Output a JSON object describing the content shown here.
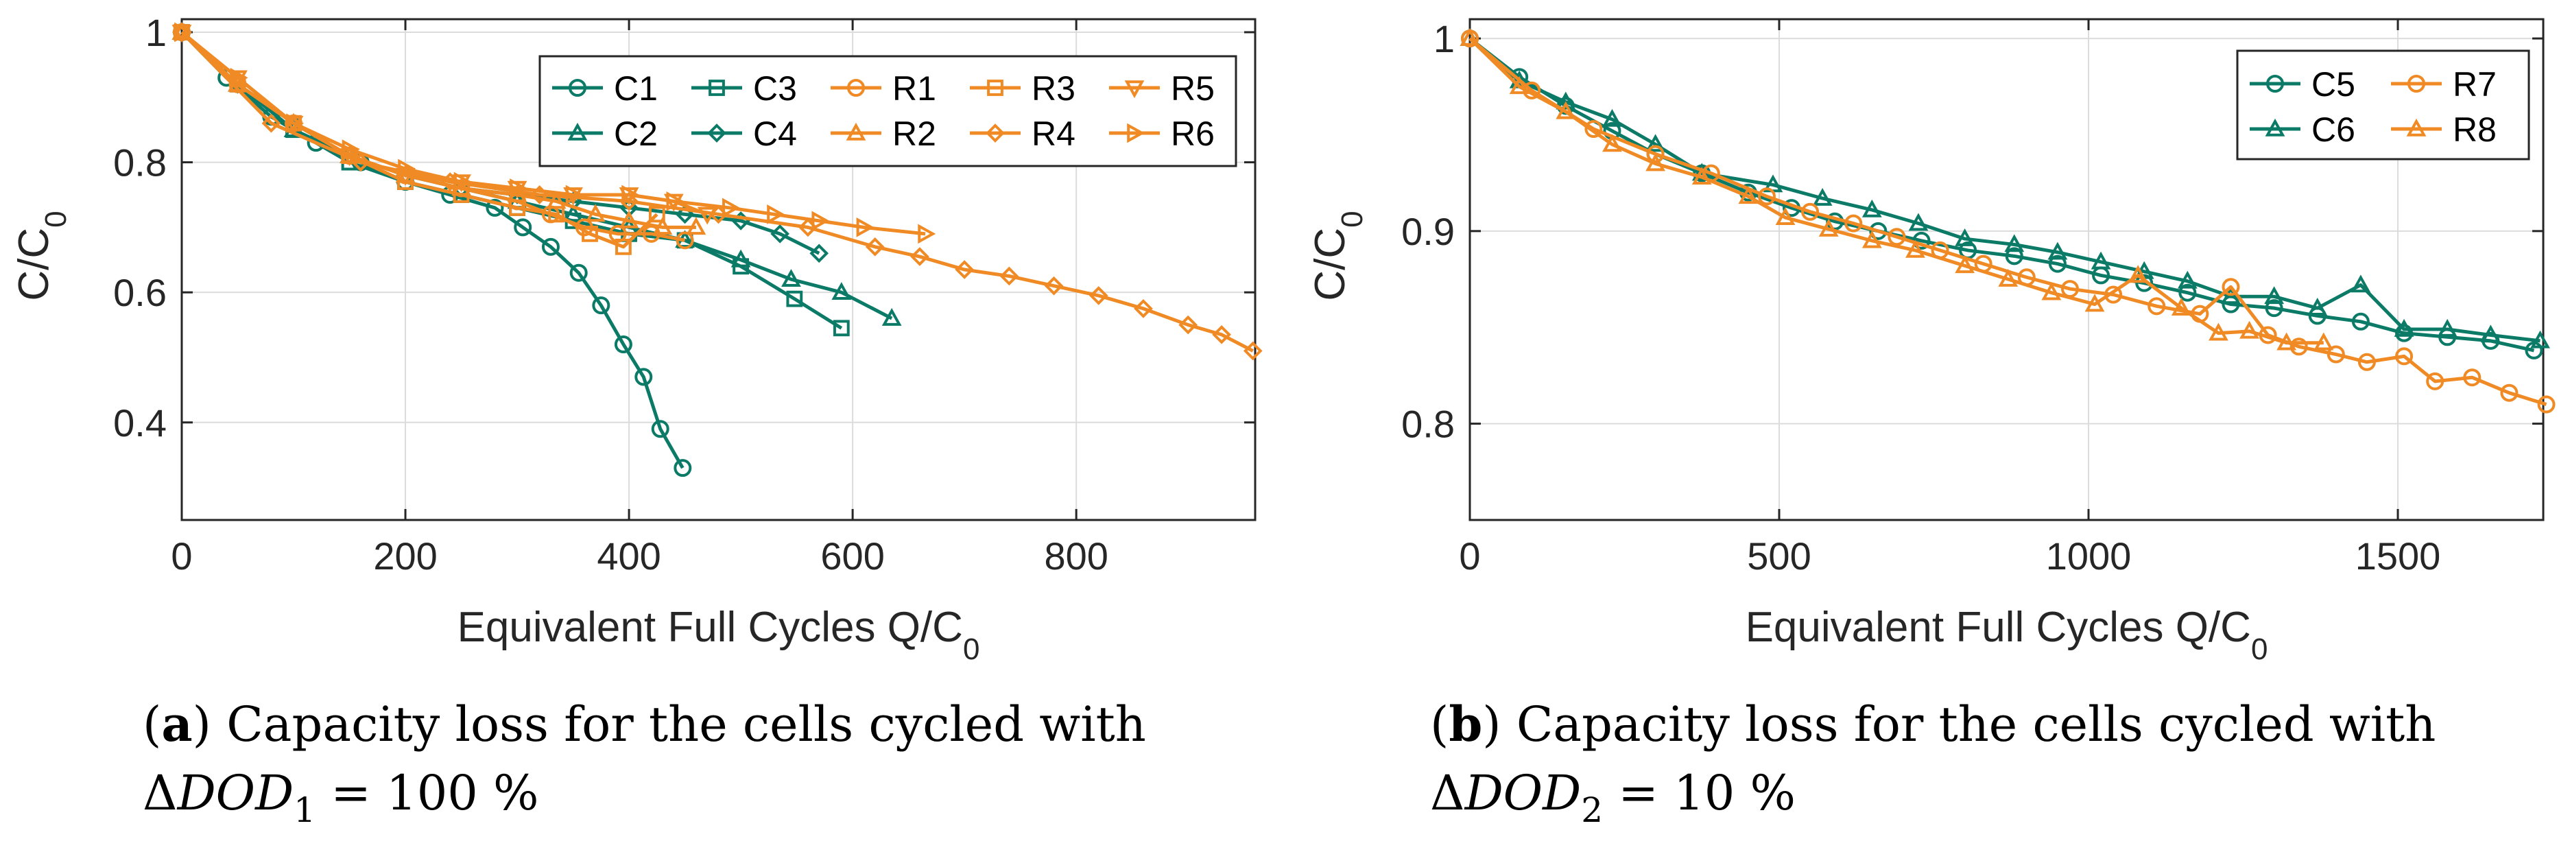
{
  "colors": {
    "teal": "#0b7a67",
    "orange": "#f08a24",
    "axis": "#262626"
  },
  "chart_data": [
    {
      "type": "line",
      "panel": "a",
      "xlabel": "Equivalent Full Cycles Q/C",
      "xlabel_sub": "0",
      "ylabel": "C/C",
      "ylabel_sub": "0",
      "xlim": [
        0,
        960
      ],
      "ylim": [
        0.25,
        1.02
      ],
      "xticks": [
        0,
        200,
        400,
        600,
        800
      ],
      "xtick_labels": [
        "0",
        "200",
        "400",
        "600",
        "800"
      ],
      "yticks": [
        0.4,
        0.6,
        0.8,
        1.0
      ],
      "ytick_labels": [
        "0.4",
        "0.6",
        "0.8",
        "1"
      ],
      "legend_position": "top-right",
      "legend_columns": 5,
      "caption": {
        "tag": "a",
        "line1": " Capacity loss for the cells cycled with",
        "line2_prefix": "Δ",
        "line2_var": "DOD",
        "line2_sub": "1",
        "line2_rest": " = 100 %"
      },
      "series": [
        {
          "name": "C1",
          "color": "teal",
          "marker": "circle",
          "x": [
            0,
            40,
            80,
            120,
            160,
            200,
            240,
            280,
            305,
            330,
            355,
            375,
            395,
            413,
            428,
            448
          ],
          "y": [
            1.0,
            0.93,
            0.87,
            0.83,
            0.8,
            0.77,
            0.75,
            0.73,
            0.7,
            0.67,
            0.63,
            0.58,
            0.52,
            0.47,
            0.39,
            0.33
          ]
        },
        {
          "name": "C2",
          "color": "teal",
          "marker": "triangle-up",
          "x": [
            0,
            50,
            100,
            150,
            200,
            250,
            300,
            350,
            400,
            450,
            500,
            545,
            590,
            635
          ],
          "y": [
            1.0,
            0.92,
            0.85,
            0.81,
            0.78,
            0.76,
            0.74,
            0.72,
            0.7,
            0.68,
            0.65,
            0.62,
            0.6,
            0.56
          ]
        },
        {
          "name": "C3",
          "color": "teal",
          "marker": "square",
          "x": [
            0,
            50,
            100,
            150,
            200,
            250,
            300,
            350,
            400,
            450,
            500,
            548,
            590
          ],
          "y": [
            1.0,
            0.92,
            0.85,
            0.8,
            0.77,
            0.75,
            0.73,
            0.71,
            0.69,
            0.68,
            0.64,
            0.59,
            0.545
          ]
        },
        {
          "name": "C4",
          "color": "teal",
          "marker": "diamond",
          "x": [
            0,
            50,
            100,
            150,
            200,
            250,
            300,
            350,
            400,
            450,
            500,
            535,
            570
          ],
          "y": [
            1.0,
            0.92,
            0.86,
            0.81,
            0.78,
            0.76,
            0.75,
            0.74,
            0.73,
            0.72,
            0.71,
            0.69,
            0.66
          ]
        },
        {
          "name": "R1",
          "color": "orange",
          "marker": "circle",
          "x": [
            0,
            50,
            100,
            150,
            200,
            250,
            300,
            330,
            360,
            390,
            420,
            450
          ],
          "y": [
            1.0,
            0.92,
            0.86,
            0.81,
            0.78,
            0.76,
            0.74,
            0.72,
            0.7,
            0.69,
            0.69,
            0.68
          ]
        },
        {
          "name": "R2",
          "color": "orange",
          "marker": "triangle-up",
          "x": [
            0,
            50,
            100,
            150,
            200,
            250,
            300,
            335,
            370,
            400,
            430,
            460
          ],
          "y": [
            1.0,
            0.92,
            0.86,
            0.81,
            0.78,
            0.76,
            0.75,
            0.74,
            0.72,
            0.71,
            0.7,
            0.7
          ]
        },
        {
          "name": "R3",
          "color": "orange",
          "marker": "square",
          "x": [
            0,
            50,
            100,
            150,
            200,
            250,
            300,
            335,
            365,
            395,
            425
          ],
          "y": [
            1.0,
            0.92,
            0.86,
            0.81,
            0.77,
            0.75,
            0.73,
            0.72,
            0.69,
            0.67,
            0.72
          ]
        },
        {
          "name": "R4",
          "color": "orange",
          "marker": "diamond",
          "x": [
            0,
            80,
            160,
            240,
            320,
            400,
            480,
            560,
            620,
            660,
            700,
            740,
            780,
            820,
            860,
            900,
            930,
            958
          ],
          "y": [
            1.0,
            0.86,
            0.8,
            0.77,
            0.75,
            0.74,
            0.72,
            0.7,
            0.67,
            0.655,
            0.635,
            0.625,
            0.61,
            0.595,
            0.575,
            0.55,
            0.535,
            0.51
          ]
        },
        {
          "name": "R5",
          "color": "orange",
          "marker": "triangle-down",
          "x": [
            0,
            50,
            100,
            150,
            200,
            250,
            300,
            350,
            400,
            440,
            470
          ],
          "y": [
            1.0,
            0.93,
            0.86,
            0.81,
            0.78,
            0.77,
            0.76,
            0.75,
            0.75,
            0.74,
            0.72
          ]
        },
        {
          "name": "R6",
          "color": "orange",
          "marker": "triangle-right",
          "x": [
            0,
            50,
            100,
            150,
            200,
            250,
            300,
            350,
            400,
            440,
            490,
            530,
            570,
            610,
            665
          ],
          "y": [
            1.0,
            0.93,
            0.86,
            0.82,
            0.79,
            0.77,
            0.76,
            0.75,
            0.75,
            0.74,
            0.73,
            0.72,
            0.71,
            0.7,
            0.69
          ]
        }
      ]
    },
    {
      "type": "line",
      "panel": "b",
      "xlabel": "Equivalent Full Cycles Q/C",
      "xlabel_sub": "0",
      "ylabel": "C/C",
      "ylabel_sub": "0",
      "xlim": [
        0,
        1735
      ],
      "ylim": [
        0.75,
        1.01
      ],
      "xticks": [
        0,
        500,
        1000,
        1500
      ],
      "xtick_labels": [
        "0",
        "500",
        "1000",
        "1500"
      ],
      "yticks": [
        0.8,
        0.9,
        1.0
      ],
      "ytick_labels": [
        "0.8",
        "0.9",
        "1"
      ],
      "legend_position": "top-right",
      "legend_columns": 2,
      "caption": {
        "tag": "b",
        "line1": " Capacity loss for the cells cycled with",
        "line2_prefix": "Δ",
        "line2_var": "DOD",
        "line2_sub": "2",
        "line2_rest": " = 10 %"
      },
      "series": [
        {
          "name": "C5",
          "color": "teal",
          "marker": "circle",
          "x": [
            0,
            80,
            155,
            230,
            300,
            375,
            450,
            520,
            590,
            660,
            730,
            805,
            880,
            950,
            1020,
            1090,
            1160,
            1230,
            1300,
            1370,
            1440,
            1510,
            1580,
            1650,
            1720
          ],
          "y": [
            1.0,
            0.98,
            0.965,
            0.952,
            0.94,
            0.93,
            0.92,
            0.912,
            0.905,
            0.9,
            0.895,
            0.89,
            0.887,
            0.883,
            0.877,
            0.873,
            0.868,
            0.862,
            0.86,
            0.856,
            0.853,
            0.847,
            0.845,
            0.843,
            0.838
          ]
        },
        {
          "name": "C6",
          "color": "teal",
          "marker": "triangle-up",
          "x": [
            0,
            80,
            155,
            230,
            300,
            375,
            490,
            570,
            650,
            725,
            800,
            880,
            950,
            1020,
            1090,
            1160,
            1230,
            1300,
            1370,
            1440,
            1510,
            1580,
            1650,
            1730
          ],
          "y": [
            1.0,
            0.978,
            0.967,
            0.958,
            0.945,
            0.93,
            0.924,
            0.917,
            0.911,
            0.904,
            0.896,
            0.893,
            0.889,
            0.884,
            0.879,
            0.874,
            0.866,
            0.866,
            0.86,
            0.872,
            0.849,
            0.849,
            0.846,
            0.843
          ]
        },
        {
          "name": "R7",
          "color": "orange",
          "marker": "circle",
          "x": [
            0,
            100,
            200,
            300,
            390,
            480,
            550,
            620,
            690,
            760,
            830,
            900,
            970,
            1040,
            1110,
            1180,
            1230,
            1290,
            1340,
            1400,
            1450,
            1510,
            1560,
            1620,
            1680,
            1740
          ],
          "y": [
            1.0,
            0.973,
            0.953,
            0.94,
            0.93,
            0.918,
            0.91,
            0.904,
            0.897,
            0.89,
            0.883,
            0.876,
            0.87,
            0.867,
            0.861,
            0.857,
            0.871,
            0.846,
            0.84,
            0.836,
            0.832,
            0.835,
            0.822,
            0.824,
            0.816,
            0.81
          ]
        },
        {
          "name": "R8",
          "color": "orange",
          "marker": "triangle-up",
          "x": [
            0,
            80,
            155,
            230,
            300,
            375,
            450,
            510,
            580,
            650,
            720,
            800,
            870,
            940,
            1010,
            1080,
            1150,
            1210,
            1260,
            1320,
            1380
          ],
          "y": [
            1.0,
            0.975,
            0.962,
            0.945,
            0.935,
            0.928,
            0.918,
            0.907,
            0.901,
            0.895,
            0.89,
            0.882,
            0.875,
            0.868,
            0.862,
            0.877,
            0.86,
            0.847,
            0.848,
            0.842,
            0.842
          ]
        }
      ]
    }
  ]
}
